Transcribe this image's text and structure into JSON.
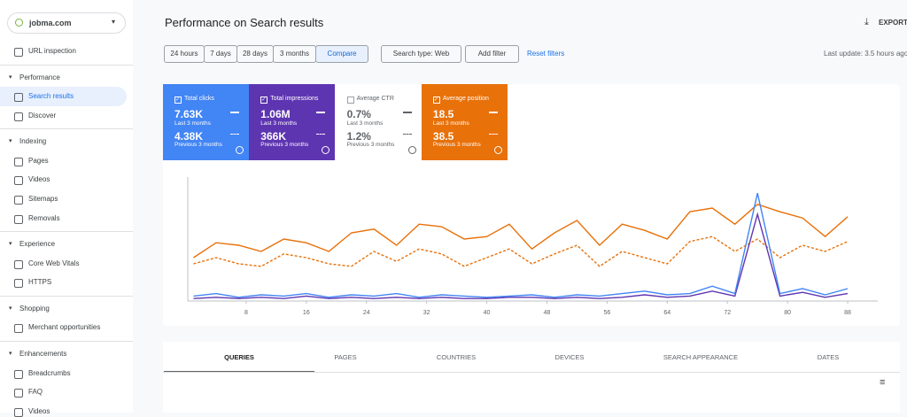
{
  "sidebar": {
    "property": "jobma.com",
    "items": [
      {
        "kind": "item",
        "label": "URL inspection"
      },
      {
        "kind": "section",
        "label": "Performance"
      },
      {
        "kind": "item",
        "label": "Search results",
        "active": true
      },
      {
        "kind": "item",
        "label": "Discover"
      },
      {
        "kind": "section",
        "label": "Indexing"
      },
      {
        "kind": "item",
        "label": "Pages"
      },
      {
        "kind": "item",
        "label": "Videos"
      },
      {
        "kind": "item",
        "label": "Sitemaps"
      },
      {
        "kind": "item",
        "label": "Removals"
      },
      {
        "kind": "section",
        "label": "Experience"
      },
      {
        "kind": "item",
        "label": "Core Web Vitals"
      },
      {
        "kind": "item",
        "label": "HTTPS"
      },
      {
        "kind": "section",
        "label": "Shopping"
      },
      {
        "kind": "item",
        "label": "Merchant opportunities"
      },
      {
        "kind": "section",
        "label": "Enhancements"
      },
      {
        "kind": "item",
        "label": "Breadcrumbs"
      },
      {
        "kind": "item",
        "label": "FAQ"
      },
      {
        "kind": "item",
        "label": "Videos"
      }
    ]
  },
  "header": {
    "title": "Performance on Search results",
    "export": "EXPORT"
  },
  "filters": {
    "dates": [
      "24 hours",
      "7 days",
      "28 days",
      "3 months",
      "Compare"
    ],
    "active_date": 4,
    "search_type": "Search type: Web",
    "add_filter": "Add filter",
    "reset": "Reset filters",
    "last_update": "Last update: 3.5 hours ago"
  },
  "metrics": [
    {
      "label": "Total clicks",
      "current": "7.63K",
      "current_period": "Last 3 months",
      "previous": "4.38K",
      "previous_period": "Previous 3 months",
      "selected": true,
      "color": "#4285f4"
    },
    {
      "label": "Total impressions",
      "current": "1.06M",
      "current_period": "Last 3 months",
      "previous": "366K",
      "previous_period": "Previous 3 months",
      "selected": true,
      "color": "#5e35b1"
    },
    {
      "label": "Average CTR",
      "current": "0.7%",
      "current_period": "Last 3 months",
      "previous": "1.2%",
      "previous_period": "Previous 3 months",
      "selected": false,
      "color": "#ffffff"
    },
    {
      "label": "Average position",
      "current": "18.5",
      "current_period": "Last 3 months",
      "previous": "38.5",
      "previous_period": "Previous 3 months",
      "selected": true,
      "color": "#e8710a"
    }
  ],
  "chart_data": {
    "type": "line",
    "x": [
      1,
      4,
      7,
      10,
      13,
      16,
      19,
      22,
      25,
      28,
      31,
      34,
      37,
      40,
      43,
      46,
      49,
      52,
      55,
      58,
      61,
      64,
      67,
      70,
      73,
      76,
      79,
      82,
      85,
      88
    ],
    "xlim": [
      0,
      92
    ],
    "ylim": [
      0,
      100
    ],
    "xticks": [
      8,
      16,
      24,
      32,
      40,
      48,
      56,
      64,
      72,
      80,
      88
    ],
    "series": [
      {
        "color": "#e8710a",
        "dashed": true,
        "values": [
          30,
          35,
          30,
          28,
          38,
          35,
          30,
          28,
          40,
          32,
          42,
          38,
          28,
          35,
          42,
          30,
          38,
          45,
          28,
          40,
          35,
          30,
          48,
          52,
          40,
          50,
          35,
          45,
          40,
          48
        ]
      },
      {
        "color": "#e8710a",
        "dashed": false,
        "values": [
          35,
          47,
          45,
          40,
          50,
          47,
          40,
          55,
          58,
          45,
          62,
          60,
          50,
          52,
          62,
          42,
          55,
          65,
          45,
          62,
          57,
          50,
          72,
          75,
          62,
          78,
          72,
          67,
          52,
          68
        ]
      },
      {
        "color": "#5e35b1",
        "dashed": false,
        "values": [
          2,
          3,
          2,
          3,
          2,
          4,
          2,
          3,
          2,
          3,
          2,
          3,
          2,
          2,
          3,
          3,
          2,
          3,
          2,
          3,
          5,
          3,
          4,
          8,
          4,
          70,
          4,
          7,
          3,
          6
        ]
      },
      {
        "color": "#4285f4",
        "dashed": false,
        "values": [
          4,
          6,
          3,
          5,
          4,
          6,
          3,
          5,
          4,
          6,
          3,
          5,
          4,
          3,
          4,
          5,
          3,
          5,
          4,
          6,
          8,
          5,
          6,
          12,
          6,
          87,
          6,
          10,
          5,
          10
        ]
      }
    ]
  },
  "tabs": {
    "items": [
      "QUERIES",
      "PAGES",
      "COUNTRIES",
      "DEVICES",
      "SEARCH APPEARANCE",
      "DATES"
    ],
    "active": 0
  }
}
